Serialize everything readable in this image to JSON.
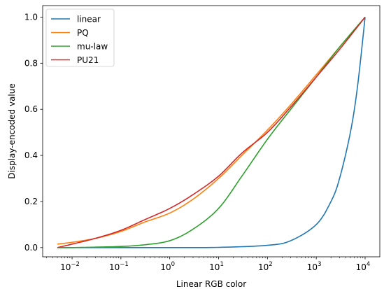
{
  "chart_data": {
    "type": "line",
    "xlabel": "Linear RGB color",
    "ylabel": "Display-encoded value",
    "xscale": "log",
    "xlim": [
      0.0025,
      20000
    ],
    "ylim": [
      -0.04,
      1.05
    ],
    "grid": false,
    "legend_position": "top-left",
    "x_ticks": [
      {
        "base": "10",
        "exp": "−2",
        "value": 0.01
      },
      {
        "base": "10",
        "exp": "−1",
        "value": 0.1
      },
      {
        "base": "10",
        "exp": "0",
        "value": 1
      },
      {
        "base": "10",
        "exp": "1",
        "value": 10
      },
      {
        "base": "10",
        "exp": "2",
        "value": 100
      },
      {
        "base": "10",
        "exp": "3",
        "value": 1000
      },
      {
        "base": "10",
        "exp": "4",
        "value": 10000
      }
    ],
    "y_ticks": [
      "0.0",
      "0.2",
      "0.4",
      "0.6",
      "0.8",
      "1.0"
    ],
    "y_tick_values": [
      0.0,
      0.2,
      0.4,
      0.6,
      0.8,
      1.0
    ],
    "series": [
      {
        "name": "linear",
        "color": "#1f77b4",
        "x": [
          0.005,
          0.01,
          0.1,
          1,
          10,
          100,
          300,
          1000,
          2000,
          3000,
          5000,
          7000,
          10000
        ],
        "y": [
          0.0,
          0.0,
          0.0,
          0.0,
          0.001,
          0.01,
          0.03,
          0.1,
          0.2,
          0.3,
          0.5,
          0.7,
          1.0
        ]
      },
      {
        "name": "PQ",
        "color": "#ff7f0e",
        "x": [
          0.005,
          0.01,
          0.03,
          0.1,
          0.3,
          1,
          3,
          10,
          30,
          100,
          300,
          1000,
          3000,
          10000
        ],
        "y": [
          0.015,
          0.023,
          0.04,
          0.07,
          0.11,
          0.15,
          0.21,
          0.3,
          0.4,
          0.51,
          0.62,
          0.75,
          0.87,
          1.0
        ]
      },
      {
        "name": "mu-law",
        "color": "#2ca02c",
        "x": [
          0.005,
          0.01,
          0.03,
          0.1,
          0.3,
          1,
          3,
          10,
          30,
          100,
          300,
          1000,
          3000,
          10000
        ],
        "y": [
          0.0,
          0.0,
          0.002,
          0.005,
          0.012,
          0.03,
          0.08,
          0.17,
          0.31,
          0.47,
          0.6,
          0.74,
          0.87,
          1.0
        ]
      },
      {
        "name": "PU21",
        "color": "#d62728",
        "x": [
          0.005,
          0.01,
          0.03,
          0.1,
          0.3,
          1,
          3,
          10,
          30,
          100,
          300,
          1000,
          3000,
          10000
        ],
        "y": [
          0.0,
          0.015,
          0.04,
          0.075,
          0.12,
          0.17,
          0.23,
          0.31,
          0.41,
          0.5,
          0.61,
          0.74,
          0.86,
          1.0
        ]
      }
    ]
  }
}
